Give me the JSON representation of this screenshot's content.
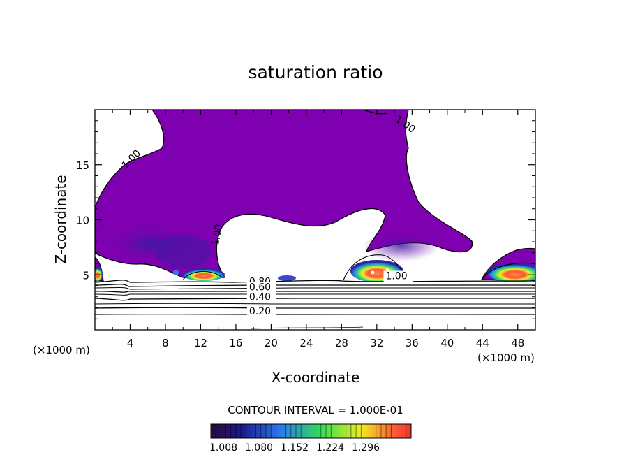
{
  "chart_data": {
    "type": "contour",
    "title": "saturation ratio",
    "xlabel": "X-coordinate",
    "ylabel": "Z-coordinate",
    "x_unit": "(×1000 m)",
    "x_unit_right": "(×1000 m)",
    "xlim": [
      0,
      50
    ],
    "ylim": [
      0,
      20
    ],
    "x_ticks": [
      4,
      8,
      12,
      16,
      20,
      24,
      28,
      32,
      36,
      40,
      44,
      48
    ],
    "y_ticks": [
      5,
      10,
      15
    ],
    "contour_labels": [
      {
        "text": "1.00",
        "x": 34,
        "y": 19.0
      },
      {
        "text": "1.00",
        "x": 3.5,
        "y": 14.6
      },
      {
        "text": "1.00",
        "x": 14,
        "y": 7.6
      },
      {
        "text": "1.00",
        "x": 33,
        "y": 4.6
      },
      {
        "text": "0.80",
        "x": 17.5,
        "y": 4.1
      },
      {
        "text": "0.60",
        "x": 17.5,
        "y": 3.6
      },
      {
        "text": "0.40",
        "x": 17.5,
        "y": 2.7
      },
      {
        "text": "0.20",
        "x": 17.5,
        "y": 1.4
      }
    ],
    "contour_interval_text": "CONTOUR INTERVAL = 1.000E-01",
    "colorbar": {
      "ticks": [
        "1.008",
        "1.080",
        "1.152",
        "1.224",
        "1.296"
      ],
      "colors": [
        "#2a0a3a",
        "#1a1a8a",
        "#2a7aee",
        "#33dd55",
        "#eeee22",
        "#ff6633",
        "#ee3333"
      ]
    },
    "fill_color": "#7f00b0"
  }
}
